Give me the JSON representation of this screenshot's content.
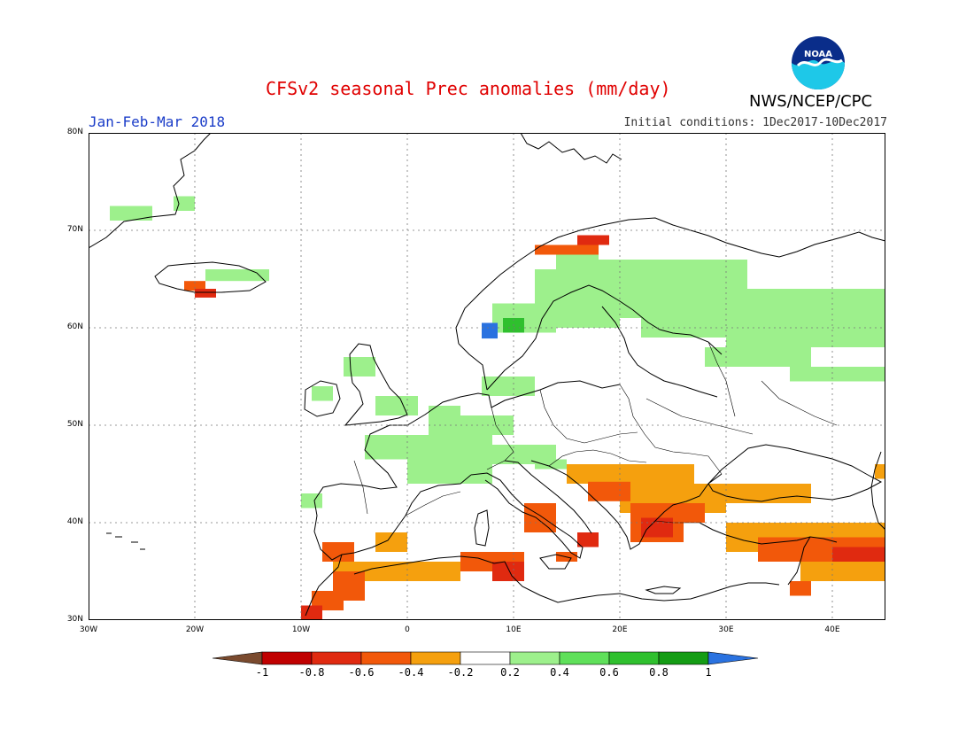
{
  "title": "CFSv2 seasonal Prec anomalies (mm/day)",
  "period": "Jan-Feb-Mar 2018",
  "initial_conditions": "Initial conditions: 1Dec2017-10Dec2017",
  "agency": "NWS/NCEP/CPC",
  "logo_text": "NOAA",
  "lat_labels": [
    "80N",
    "70N",
    "60N",
    "50N",
    "40N",
    "30N"
  ],
  "lon_labels": [
    "30W",
    "20W",
    "10W",
    "0",
    "10E",
    "20E",
    "30E",
    "40E"
  ],
  "colorbar": {
    "labels": [
      "-1",
      "-0.8",
      "-0.6",
      "-0.4",
      "-0.2",
      "0.2",
      "0.4",
      "0.6",
      "0.8",
      "1"
    ],
    "colors": [
      "#7a4a2e",
      "#c00000",
      "#e02a10",
      "#f2580a",
      "#f5a00e",
      "#ffffff",
      "#9df08c",
      "#5fe05a",
      "#2fc02e",
      "#149c14",
      "#2a72e0"
    ]
  }
}
